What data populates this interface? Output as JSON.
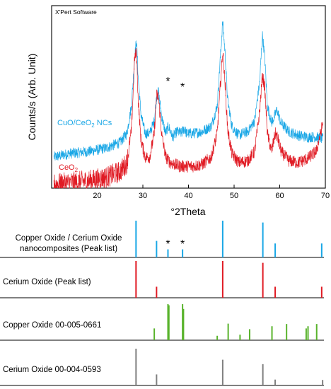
{
  "software_label": "X'Pert Software",
  "colors": {
    "cuo_ceo2": "#1aa7e6",
    "ceo2": "#e01b24",
    "copper_oxide_ref": "#59b32c",
    "cerium_oxide_ref": "#808080",
    "axis": "#000000"
  },
  "chart_data": [
    {
      "type": "line",
      "xlabel": "°2Theta",
      "ylabel": "Counts/s (Arb. Unit)",
      "xlim": [
        10,
        70
      ],
      "x_ticks": [
        20,
        30,
        40,
        50,
        60,
        70
      ],
      "grid": false,
      "series": [
        {
          "name": "CuO/CeO₂ NCs",
          "name_parts": {
            "main": "CuO/CeO",
            "sub": "2",
            "tail": " NCs"
          },
          "color": "#1aa7e6",
          "x": [
            10.5,
            14,
            18,
            22,
            25,
            26.5,
            27.5,
            28.2,
            28.6,
            29.0,
            29.6,
            30.5,
            31.5,
            32.5,
            33.0,
            33.4,
            34.2,
            35.0,
            35.6,
            36.5,
            37.5,
            38.5,
            39.0,
            39.6,
            41,
            43,
            45,
            46.3,
            47.0,
            47.5,
            48.0,
            48.6,
            49.5,
            51,
            53,
            54.5,
            55.6,
            56.2,
            56.7,
            57.3,
            58.2,
            58.8,
            59.4,
            60.2,
            62,
            64,
            66,
            68,
            69.5
          ],
          "y": [
            0.17,
            0.19,
            0.2,
            0.22,
            0.25,
            0.3,
            0.45,
            0.72,
            0.81,
            0.6,
            0.4,
            0.3,
            0.3,
            0.37,
            0.5,
            0.53,
            0.38,
            0.3,
            0.34,
            0.28,
            0.31,
            0.3,
            0.33,
            0.3,
            0.3,
            0.31,
            0.34,
            0.45,
            0.72,
            0.91,
            0.75,
            0.48,
            0.34,
            0.29,
            0.31,
            0.37,
            0.58,
            0.84,
            0.72,
            0.45,
            0.36,
            0.39,
            0.43,
            0.36,
            0.31,
            0.29,
            0.28,
            0.28,
            0.27
          ]
        },
        {
          "name": "CeO₂",
          "name_parts": {
            "main": "CeO",
            "sub": "2",
            "tail": ""
          },
          "color": "#e01b24",
          "x": [
            10.5,
            14,
            18,
            22,
            25,
            26.5,
            27.5,
            28.2,
            28.6,
            29.0,
            29.6,
            30.5,
            31.5,
            32.5,
            33.0,
            33.4,
            34.2,
            35.0,
            36,
            38,
            41,
            43,
            45,
            46.3,
            47.0,
            47.5,
            48.0,
            48.6,
            49.5,
            51,
            53,
            54.5,
            55.6,
            56.2,
            56.7,
            57.3,
            58.2,
            59.0,
            59.5,
            60.3,
            62,
            64,
            66,
            68,
            69.5
          ],
          "y": [
            0.02,
            0.03,
            0.04,
            0.06,
            0.09,
            0.14,
            0.32,
            0.72,
            0.74,
            0.47,
            0.26,
            0.17,
            0.17,
            0.3,
            0.51,
            0.5,
            0.28,
            0.17,
            0.14,
            0.12,
            0.12,
            0.13,
            0.17,
            0.3,
            0.57,
            0.75,
            0.58,
            0.32,
            0.19,
            0.14,
            0.15,
            0.2,
            0.42,
            0.62,
            0.55,
            0.3,
            0.2,
            0.3,
            0.28,
            0.2,
            0.15,
            0.14,
            0.16,
            0.2,
            0.36
          ]
        }
      ],
      "annotations": [
        {
          "text": "*",
          "x": 35.5
        },
        {
          "text": "*",
          "x": 38.7
        }
      ]
    },
    {
      "type": "bar",
      "subtype": "stick-patterns",
      "xlim": [
        10,
        70
      ],
      "panels": [
        {
          "label": "Copper Oxide / Cerium Oxide nanocomposites (Peak list)",
          "label_lines": [
            "Copper Oxide / Cerium Oxide",
            "nanocomposites (Peak list)"
          ],
          "color": "#1aa7e6",
          "peaks": [
            [
              28.5,
              1.0
            ],
            [
              33.0,
              0.45
            ],
            [
              35.5,
              0.22
            ],
            [
              38.7,
              0.22
            ],
            [
              47.5,
              1.0
            ],
            [
              56.3,
              0.95
            ],
            [
              59.0,
              0.38
            ],
            [
              69.2,
              0.38
            ]
          ]
        },
        {
          "label": "Cerium Oxide (Peak list)",
          "label_lines": [
            "Cerium Oxide (Peak list)"
          ],
          "color": "#e01b24",
          "peaks": [
            [
              28.5,
              1.0
            ],
            [
              33.0,
              0.3
            ],
            [
              47.5,
              1.0
            ],
            [
              56.3,
              0.95
            ],
            [
              59.0,
              0.3
            ],
            [
              69.2,
              0.3
            ]
          ]
        },
        {
          "label": "Copper Oxide 00-005-0661",
          "label_lines": [
            "Copper Oxide  00-005-0661"
          ],
          "color": "#59b32c",
          "peaks": [
            [
              32.5,
              0.32
            ],
            [
              35.5,
              0.98
            ],
            [
              35.7,
              0.95
            ],
            [
              38.7,
              0.98
            ],
            [
              38.9,
              0.85
            ],
            [
              46.3,
              0.12
            ],
            [
              48.7,
              0.45
            ],
            [
              51.3,
              0.15
            ],
            [
              53.4,
              0.3
            ],
            [
              58.3,
              0.38
            ],
            [
              61.5,
              0.44
            ],
            [
              65.8,
              0.32
            ],
            [
              66.2,
              0.38
            ],
            [
              68.1,
              0.44
            ]
          ]
        },
        {
          "label": "Cerium Oxide 00-004-0593",
          "label_lines": [
            "Cerium Oxide  00-004-0593"
          ],
          "color": "#808080",
          "peaks": [
            [
              28.5,
              1.0
            ],
            [
              33.0,
              0.3
            ],
            [
              47.5,
              0.7
            ],
            [
              56.3,
              0.58
            ],
            [
              59.0,
              0.16
            ],
            [
              69.4,
              0.15
            ]
          ]
        }
      ],
      "annotations": [
        {
          "text": "*",
          "x": 35.5
        },
        {
          "text": "*",
          "x": 38.7
        }
      ]
    }
  ]
}
